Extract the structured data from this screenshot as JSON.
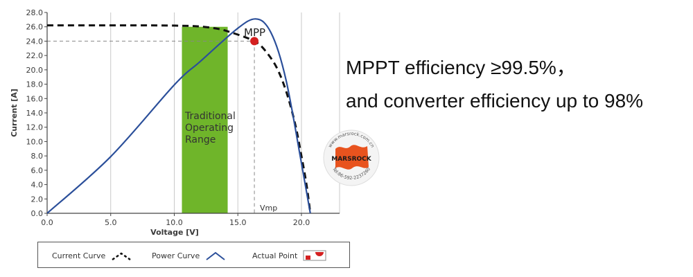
{
  "headline": {
    "line1": "MPPT efficiency ≥99.5%，",
    "line2": "and converter efficiency up to 98%"
  },
  "chart_data": {
    "type": "line",
    "xlabel": "Voltage [V]",
    "ylabel": "Current [A]",
    "xlim": [
      0,
      23
    ],
    "ylim": [
      0,
      28
    ],
    "x_ticks": [
      "0.0",
      "5.0",
      "10.0",
      "15.0",
      "20.0"
    ],
    "x_tick_values": [
      0,
      5,
      10,
      15,
      20
    ],
    "y_ticks": [
      "0.0",
      "2.0",
      "4.0",
      "6.0",
      "8.0",
      "10.0",
      "12.0",
      "14.0",
      "16.0",
      "18.0",
      "20.0",
      "22.0",
      "24.0",
      "26.0",
      "28.0"
    ],
    "y_tick_values": [
      0,
      2,
      4,
      6,
      8,
      10,
      12,
      14,
      16,
      18,
      20,
      22,
      24,
      26,
      28
    ],
    "grid": "vertical",
    "series": [
      {
        "name": "Current Curve",
        "style": "dashed",
        "color": "#111111",
        "x": [
          0,
          4,
          8,
          10.5,
          12,
          13.5,
          14.5,
          15.5,
          16.3,
          17,
          18,
          18.8,
          19.5,
          20,
          20.4,
          20.7
        ],
        "y": [
          26.2,
          26.2,
          26.2,
          26.15,
          26.05,
          25.7,
          25.2,
          24.6,
          24.0,
          23.0,
          20.5,
          17.0,
          12.5,
          8.0,
          4.0,
          0
        ]
      },
      {
        "name": "Power Curve",
        "style": "solid",
        "color": "#2b4f9a",
        "x": [
          0,
          5,
          10,
          12,
          14,
          15,
          15.8,
          16.4,
          17,
          17.6,
          18.2,
          18.8,
          19.3,
          19.8,
          20.2,
          20.6,
          20.7
        ],
        "y": [
          0,
          7.9,
          17.9,
          21.1,
          24.3,
          25.8,
          26.8,
          27.1,
          26.7,
          25.2,
          22.5,
          18.5,
          14.0,
          9.0,
          5.0,
          1.0,
          0
        ]
      }
    ],
    "actual_point": {
      "name": "Actual Point",
      "x": 16.3,
      "y": 24.0,
      "label": "MPP",
      "color": "#d42020"
    },
    "vmp_label": "Vmp",
    "operating_range": {
      "label_lines": [
        "Traditional",
        "Operating",
        "Range"
      ],
      "x_start": 10.6,
      "x_end": 14.2,
      "color": "#6fb52a"
    },
    "legend": [
      {
        "key": "current",
        "label": "Current Curve"
      },
      {
        "key": "power",
        "label": "Power Curve"
      },
      {
        "key": "actual",
        "label": "Actual Point"
      }
    ],
    "legend_position": "bottom"
  },
  "watermark": {
    "brand": "MARSROCK",
    "url": "www.marsrock.com.cn",
    "tel": "Tel:86-592-2237260",
    "color": "#e8531e"
  }
}
